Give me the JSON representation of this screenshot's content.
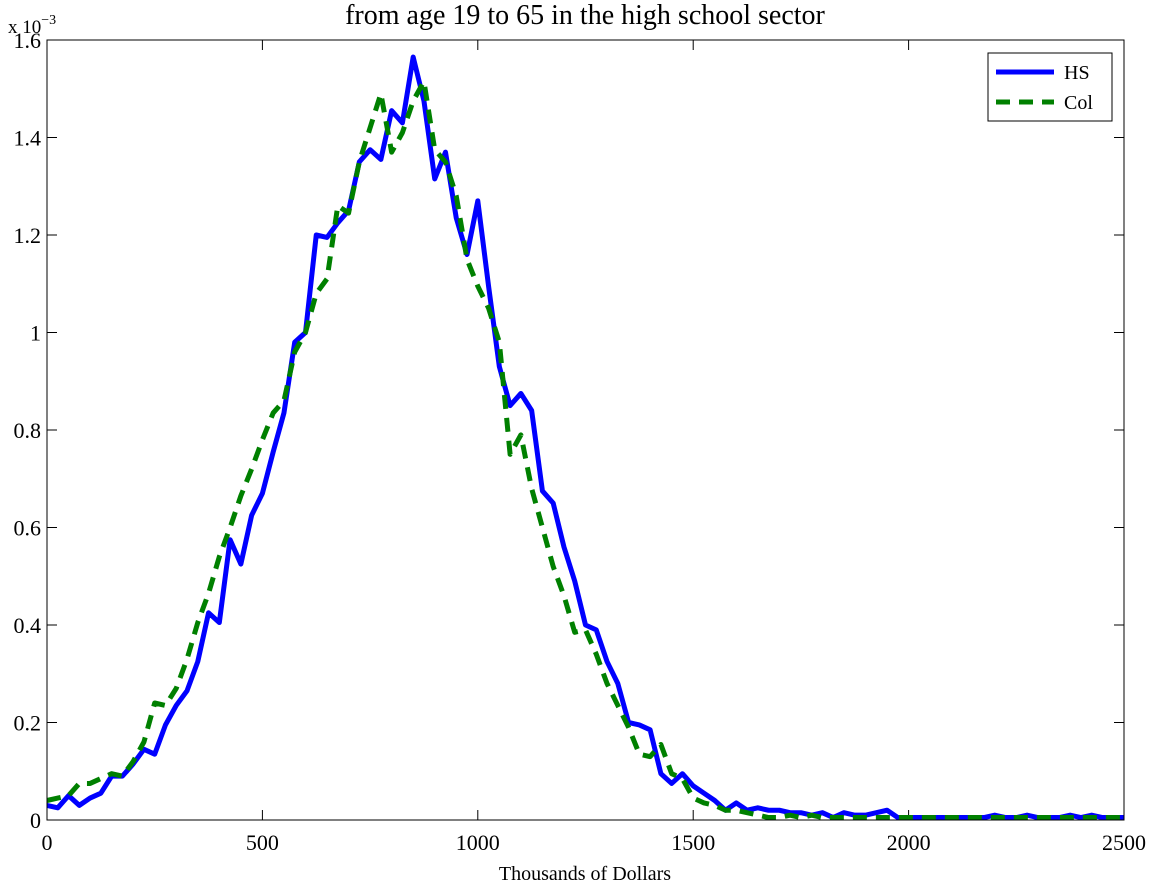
{
  "chart_data": {
    "type": "line",
    "title": "from age 19 to 65 in the high school sector",
    "xlabel": "Thousands of Dollars",
    "y_multiplier": {
      "base": "x 10",
      "exponent": "−3"
    },
    "x": [
      0,
      25,
      50,
      75,
      100,
      125,
      150,
      175,
      200,
      225,
      250,
      275,
      300,
      325,
      350,
      375,
      400,
      425,
      450,
      475,
      500,
      525,
      550,
      575,
      600,
      625,
      650,
      675,
      700,
      725,
      750,
      775,
      800,
      825,
      850,
      875,
      900,
      925,
      950,
      975,
      1000,
      1025,
      1050,
      1075,
      1100,
      1125,
      1150,
      1175,
      1200,
      1225,
      1250,
      1275,
      1300,
      1325,
      1350,
      1375,
      1400,
      1425,
      1450,
      1475,
      1500,
      1525,
      1550,
      1575,
      1600,
      1625,
      1650,
      1675,
      1700,
      1725,
      1750,
      1775,
      1800,
      1825,
      1850,
      1875,
      1900,
      1925,
      1950,
      1975,
      2000,
      2025,
      2050,
      2075,
      2100,
      2125,
      2150,
      2175,
      2200,
      2225,
      2250,
      2275,
      2300,
      2325,
      2350,
      2375,
      2400,
      2425,
      2450,
      2475,
      2500
    ],
    "series": [
      {
        "name": "HS",
        "color": "#0000ff",
        "dash": "solid",
        "values": [
          0.03,
          0.025,
          0.05,
          0.03,
          0.045,
          0.055,
          0.09,
          0.09,
          0.115,
          0.145,
          0.135,
          0.195,
          0.235,
          0.265,
          0.325,
          0.425,
          0.405,
          0.575,
          0.525,
          0.625,
          0.67,
          0.755,
          0.835,
          0.98,
          1.0,
          1.2,
          1.195,
          1.225,
          1.25,
          1.35,
          1.375,
          1.355,
          1.455,
          1.43,
          1.565,
          1.475,
          1.315,
          1.37,
          1.235,
          1.16,
          1.27,
          1.095,
          0.93,
          0.85,
          0.875,
          0.84,
          0.675,
          0.65,
          0.56,
          0.49,
          0.4,
          0.39,
          0.325,
          0.28,
          0.2,
          0.195,
          0.185,
          0.095,
          0.075,
          0.095,
          0.07,
          0.055,
          0.04,
          0.02,
          0.035,
          0.02,
          0.025,
          0.02,
          0.02,
          0.015,
          0.015,
          0.01,
          0.015,
          0.005,
          0.015,
          0.01,
          0.01,
          0.015,
          0.02,
          0.005,
          0.005,
          0.005,
          0.005,
          0.005,
          0.005,
          0.005,
          0.005,
          0.005,
          0.01,
          0.005,
          0.005,
          0.01,
          0.005,
          0.005,
          0.005,
          0.01,
          0.005,
          0.01,
          0.005,
          0.005,
          0.005
        ]
      },
      {
        "name": "Col",
        "color": "#008000",
        "dash": "dashed",
        "values": [
          0.04,
          0.045,
          0.05,
          0.075,
          0.075,
          0.085,
          0.095,
          0.09,
          0.12,
          0.16,
          0.24,
          0.235,
          0.27,
          0.33,
          0.405,
          0.465,
          0.54,
          0.6,
          0.665,
          0.72,
          0.78,
          0.835,
          0.86,
          0.96,
          1.0,
          1.08,
          1.11,
          1.26,
          1.245,
          1.35,
          1.42,
          1.49,
          1.37,
          1.41,
          1.475,
          1.515,
          1.375,
          1.35,
          1.28,
          1.15,
          1.095,
          1.05,
          0.98,
          0.75,
          0.79,
          0.68,
          0.6,
          0.52,
          0.46,
          0.385,
          0.39,
          0.34,
          0.28,
          0.235,
          0.19,
          0.135,
          0.13,
          0.155,
          0.095,
          0.085,
          0.045,
          0.035,
          0.03,
          0.02,
          0.02,
          0.015,
          0.01,
          0.005,
          0.005,
          0.01,
          0.005,
          0.01,
          0.005,
          0.005,
          0.005,
          0.005,
          0.005,
          0.005,
          0.005,
          0.005,
          0.005,
          0.005,
          0.005,
          0.005,
          0.005,
          0.005,
          0.005,
          0.005,
          0.005,
          0.005,
          0.005,
          0.005,
          0.005,
          0.005,
          0.005,
          0.005,
          0.005,
          0.005,
          0.005,
          0.005,
          0.005
        ]
      }
    ],
    "xlim": [
      0,
      2500
    ],
    "xticks": [
      0,
      500,
      1000,
      1500,
      2000,
      2500
    ],
    "ylim": [
      0,
      1.6
    ],
    "yticks": [
      0,
      0.2,
      0.4,
      0.6,
      0.8,
      1,
      1.2,
      1.4,
      1.6
    ],
    "grid": false,
    "legend": "top-right"
  }
}
